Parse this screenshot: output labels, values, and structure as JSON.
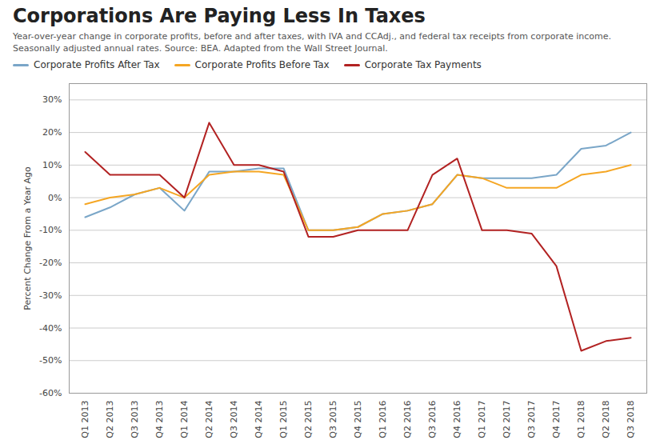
{
  "chart_data": {
    "type": "line",
    "title": "Corporations Are Paying Less In Taxes",
    "subtitle": "Year-over-year change in corporate profits, before and after taxes, with IVA and CCAdj., and federal tax receipts from corporate income. Seasonally adjusted annual rates. Source: BEA. Adapted from the Wall Street Journal.",
    "ylabel": "Percent Change From a Year Ago",
    "categories": [
      "Q1 2013",
      "Q2 2013",
      "Q3 2013",
      "Q4 2013",
      "Q1 2014",
      "Q2 2014",
      "Q3 2014",
      "Q4 2014",
      "Q1 2015",
      "Q2 2015",
      "Q3 2015",
      "Q4 2015",
      "Q1 2016",
      "Q2 2016",
      "Q3 2016",
      "Q4 2016",
      "Q1 2017",
      "Q2 2017",
      "Q3 2017",
      "Q4 2017",
      "Q1 2018",
      "Q2 2018",
      "Q3 2018"
    ],
    "series": [
      {
        "name": "Corporate Profits After Tax",
        "color": "#7AA6C8",
        "values": [
          -6,
          -3,
          1,
          3,
          -4,
          8,
          8,
          9,
          9,
          -10,
          -10,
          -9,
          -5,
          -4,
          -2,
          7,
          6,
          6,
          6,
          7,
          15,
          16,
          20
        ]
      },
      {
        "name": "Corporate Profits Before Tax",
        "color": "#F5A623",
        "values": [
          -2,
          0,
          1,
          3,
          0,
          7,
          8,
          8,
          7,
          -10,
          -10,
          -9,
          -5,
          -4,
          -2,
          7,
          6,
          3,
          3,
          3,
          7,
          8,
          10
        ]
      },
      {
        "name": "Corporate Tax Payments",
        "color": "#B22222",
        "values": [
          14,
          7,
          7,
          7,
          0,
          23,
          10,
          10,
          8,
          -12,
          -12,
          -10,
          -10,
          -10,
          7,
          12,
          -10,
          -10,
          -11,
          -21,
          -47,
          -44,
          -43
        ]
      }
    ],
    "ylim": [
      -60,
      35
    ],
    "yticks": [
      {
        "value": -60,
        "label": "-60%"
      },
      {
        "value": -50,
        "label": "-50%"
      },
      {
        "value": -40,
        "label": "-40%"
      },
      {
        "value": -30,
        "label": "-30%"
      },
      {
        "value": -20,
        "label": "-20%"
      },
      {
        "value": -10,
        "label": "-10%"
      },
      {
        "value": 0,
        "label": "0%"
      },
      {
        "value": 10,
        "label": "10%"
      },
      {
        "value": 20,
        "label": "20%"
      },
      {
        "value": 30,
        "label": "30%"
      }
    ],
    "grid": true,
    "legend": "top"
  }
}
